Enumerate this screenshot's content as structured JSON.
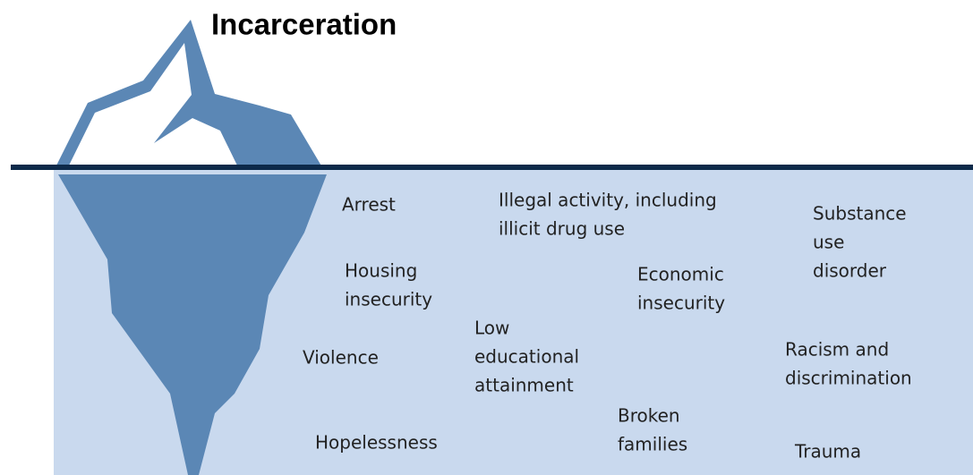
{
  "title": "Incarceration",
  "labels": [
    [
      "Arrest"
    ],
    [
      "Illegal activity, including",
      "illicit drug use"
    ],
    [
      "Substance",
      "use",
      "disorder"
    ],
    [
      "Housing",
      "insecurity"
    ],
    [
      "Economic",
      "insecurity"
    ],
    [
      "Low",
      "educational",
      "attainment"
    ],
    [
      "Violence"
    ],
    [
      "Racism and",
      "discrimination"
    ],
    [
      "Broken",
      "families"
    ],
    [
      "Hopelessness"
    ],
    [
      "Trauma"
    ]
  ]
}
